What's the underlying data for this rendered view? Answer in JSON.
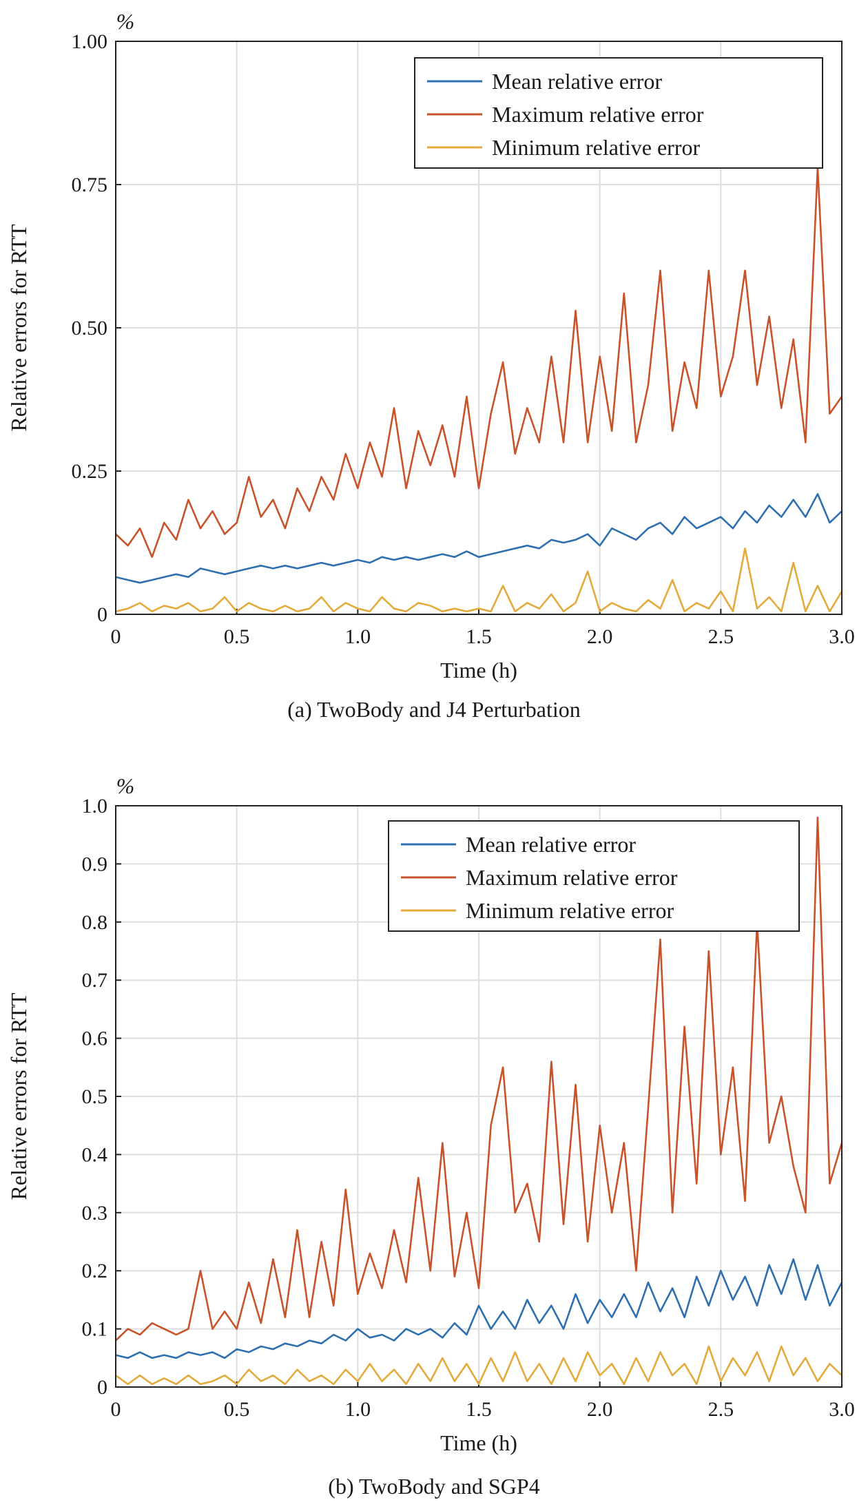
{
  "chart_data": [
    {
      "type": "line",
      "caption": "(a) TwoBody and J4 Perturbation",
      "unit_label": "%",
      "xlabel": "Time (h)",
      "ylabel": "Relative errors for RTT",
      "xlim": [
        0,
        3.0
      ],
      "ylim": [
        0,
        1.0
      ],
      "xticks": [
        "0",
        "0.5",
        "1.0",
        "1.5",
        "2.0",
        "2.5",
        "3.0"
      ],
      "yticks": [
        "0",
        "0.25",
        "0.50",
        "0.75",
        "1.00"
      ],
      "grid": true,
      "legend_position": "top-right",
      "x": [
        0,
        0.05,
        0.1,
        0.15,
        0.2,
        0.25,
        0.3,
        0.35,
        0.4,
        0.45,
        0.5,
        0.55,
        0.6,
        0.65,
        0.7,
        0.75,
        0.8,
        0.85,
        0.9,
        0.95,
        1.0,
        1.05,
        1.1,
        1.15,
        1.2,
        1.25,
        1.3,
        1.35,
        1.4,
        1.45,
        1.5,
        1.55,
        1.6,
        1.65,
        1.7,
        1.75,
        1.8,
        1.85,
        1.9,
        1.95,
        2.0,
        2.05,
        2.1,
        2.15,
        2.2,
        2.25,
        2.3,
        2.35,
        2.4,
        2.45,
        2.5,
        2.55,
        2.6,
        2.65,
        2.7,
        2.75,
        2.8,
        2.85,
        2.9,
        2.95,
        3.0
      ],
      "series": [
        {
          "name": "Mean relative error",
          "color": "#2e6fb0",
          "values": [
            0.065,
            0.06,
            0.055,
            0.06,
            0.065,
            0.07,
            0.065,
            0.08,
            0.075,
            0.07,
            0.075,
            0.08,
            0.085,
            0.08,
            0.085,
            0.08,
            0.085,
            0.09,
            0.085,
            0.09,
            0.095,
            0.09,
            0.1,
            0.095,
            0.1,
            0.095,
            0.1,
            0.105,
            0.1,
            0.11,
            0.1,
            0.105,
            0.11,
            0.115,
            0.12,
            0.115,
            0.13,
            0.125,
            0.13,
            0.14,
            0.12,
            0.15,
            0.14,
            0.13,
            0.15,
            0.16,
            0.14,
            0.17,
            0.15,
            0.16,
            0.17,
            0.15,
            0.18,
            0.16,
            0.19,
            0.17,
            0.2,
            0.17,
            0.21,
            0.16,
            0.18
          ]
        },
        {
          "name": "Maximum relative error",
          "color": "#c8532a",
          "values": [
            0.14,
            0.12,
            0.15,
            0.1,
            0.16,
            0.13,
            0.2,
            0.15,
            0.18,
            0.14,
            0.16,
            0.24,
            0.17,
            0.2,
            0.15,
            0.22,
            0.18,
            0.24,
            0.2,
            0.28,
            0.22,
            0.3,
            0.24,
            0.36,
            0.22,
            0.32,
            0.26,
            0.33,
            0.24,
            0.38,
            0.22,
            0.35,
            0.44,
            0.28,
            0.36,
            0.3,
            0.45,
            0.3,
            0.53,
            0.3,
            0.45,
            0.32,
            0.56,
            0.3,
            0.4,
            0.6,
            0.32,
            0.44,
            0.36,
            0.6,
            0.38,
            0.45,
            0.6,
            0.4,
            0.52,
            0.36,
            0.48,
            0.3,
            0.78,
            0.35,
            0.38
          ]
        },
        {
          "name": "Minimum relative error",
          "color": "#e3aa3c",
          "values": [
            0.005,
            0.01,
            0.02,
            0.005,
            0.015,
            0.01,
            0.02,
            0.005,
            0.01,
            0.03,
            0.005,
            0.02,
            0.01,
            0.005,
            0.015,
            0.005,
            0.01,
            0.03,
            0.005,
            0.02,
            0.01,
            0.005,
            0.03,
            0.01,
            0.005,
            0.02,
            0.015,
            0.005,
            0.01,
            0.005,
            0.01,
            0.005,
            0.05,
            0.005,
            0.02,
            0.01,
            0.035,
            0.005,
            0.02,
            0.075,
            0.005,
            0.02,
            0.01,
            0.005,
            0.025,
            0.01,
            0.06,
            0.005,
            0.02,
            0.01,
            0.04,
            0.005,
            0.115,
            0.01,
            0.03,
            0.005,
            0.09,
            0.005,
            0.05,
            0.005,
            0.04
          ]
        }
      ]
    },
    {
      "type": "line",
      "caption": "(b) TwoBody and SGP4",
      "unit_label": "%",
      "xlabel": "Time (h)",
      "ylabel": "Relative errors for RTT",
      "xlim": [
        0,
        3.0
      ],
      "ylim": [
        0,
        1.0
      ],
      "xticks": [
        "0",
        "0.5",
        "1.0",
        "1.5",
        "2.0",
        "2.5",
        "3.0"
      ],
      "yticks": [
        "0",
        "0.1",
        "0.2",
        "0.3",
        "0.4",
        "0.5",
        "0.6",
        "0.7",
        "0.8",
        "0.9",
        "1.0"
      ],
      "grid": true,
      "legend_position": "top-right",
      "x": [
        0,
        0.05,
        0.1,
        0.15,
        0.2,
        0.25,
        0.3,
        0.35,
        0.4,
        0.45,
        0.5,
        0.55,
        0.6,
        0.65,
        0.7,
        0.75,
        0.8,
        0.85,
        0.9,
        0.95,
        1.0,
        1.05,
        1.1,
        1.15,
        1.2,
        1.25,
        1.3,
        1.35,
        1.4,
        1.45,
        1.5,
        1.55,
        1.6,
        1.65,
        1.7,
        1.75,
        1.8,
        1.85,
        1.9,
        1.95,
        2.0,
        2.05,
        2.1,
        2.15,
        2.2,
        2.25,
        2.3,
        2.35,
        2.4,
        2.45,
        2.5,
        2.55,
        2.6,
        2.65,
        2.7,
        2.75,
        2.8,
        2.85,
        2.9,
        2.95,
        3.0
      ],
      "series": [
        {
          "name": "Mean relative error",
          "color": "#2e6fb0",
          "values": [
            0.055,
            0.05,
            0.06,
            0.05,
            0.055,
            0.05,
            0.06,
            0.055,
            0.06,
            0.05,
            0.065,
            0.06,
            0.07,
            0.065,
            0.075,
            0.07,
            0.08,
            0.075,
            0.09,
            0.08,
            0.1,
            0.085,
            0.09,
            0.08,
            0.1,
            0.09,
            0.1,
            0.085,
            0.11,
            0.09,
            0.14,
            0.1,
            0.13,
            0.1,
            0.15,
            0.11,
            0.14,
            0.1,
            0.16,
            0.11,
            0.15,
            0.12,
            0.16,
            0.12,
            0.18,
            0.13,
            0.17,
            0.12,
            0.19,
            0.14,
            0.2,
            0.15,
            0.19,
            0.14,
            0.21,
            0.16,
            0.22,
            0.15,
            0.21,
            0.14,
            0.18
          ]
        },
        {
          "name": "Maximum relative error",
          "color": "#c8532a",
          "values": [
            0.08,
            0.1,
            0.09,
            0.11,
            0.1,
            0.09,
            0.1,
            0.2,
            0.1,
            0.13,
            0.1,
            0.18,
            0.11,
            0.22,
            0.12,
            0.27,
            0.12,
            0.25,
            0.14,
            0.34,
            0.16,
            0.23,
            0.17,
            0.27,
            0.18,
            0.36,
            0.2,
            0.42,
            0.19,
            0.3,
            0.17,
            0.45,
            0.55,
            0.3,
            0.35,
            0.25,
            0.56,
            0.28,
            0.52,
            0.25,
            0.45,
            0.3,
            0.42,
            0.2,
            0.48,
            0.77,
            0.3,
            0.62,
            0.35,
            0.75,
            0.4,
            0.55,
            0.32,
            0.8,
            0.42,
            0.5,
            0.38,
            0.3,
            0.98,
            0.35,
            0.42
          ]
        },
        {
          "name": "Minimum relative error",
          "color": "#e3aa3c",
          "values": [
            0.02,
            0.005,
            0.02,
            0.005,
            0.015,
            0.005,
            0.02,
            0.005,
            0.01,
            0.02,
            0.005,
            0.03,
            0.01,
            0.02,
            0.005,
            0.03,
            0.01,
            0.02,
            0.005,
            0.03,
            0.01,
            0.04,
            0.01,
            0.03,
            0.005,
            0.04,
            0.01,
            0.05,
            0.01,
            0.04,
            0.005,
            0.05,
            0.01,
            0.06,
            0.01,
            0.04,
            0.005,
            0.05,
            0.01,
            0.06,
            0.02,
            0.04,
            0.005,
            0.05,
            0.01,
            0.06,
            0.02,
            0.04,
            0.005,
            0.07,
            0.01,
            0.05,
            0.02,
            0.06,
            0.01,
            0.07,
            0.02,
            0.05,
            0.01,
            0.04,
            0.02
          ]
        }
      ]
    }
  ]
}
